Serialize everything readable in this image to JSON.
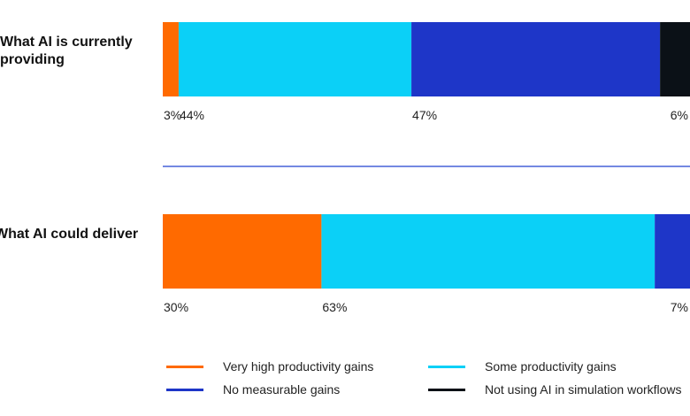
{
  "chart_data": {
    "type": "bar",
    "orientation": "horizontal",
    "stacked": true,
    "rows": [
      {
        "label": "What AI is currently providing",
        "segments": [
          {
            "series": "Very high productivity gains",
            "value": 3,
            "label": "3%"
          },
          {
            "series": "Some productivity gains",
            "value": 44,
            "label": "44%"
          },
          {
            "series": "No measurable gains",
            "value": 47,
            "label": "47%"
          },
          {
            "series": "Not using AI in simulation workflows",
            "value": 6,
            "label": "6%"
          }
        ]
      },
      {
        "label": "What AI could deliver",
        "segments": [
          {
            "series": "Very high productivity gains",
            "value": 30,
            "label": "30%"
          },
          {
            "series": "Some productivity gains",
            "value": 63,
            "label": "63%"
          },
          {
            "series": "No measurable gains",
            "value": 7,
            "label": "7%"
          }
        ]
      }
    ],
    "series": [
      {
        "name": "Very high productivity gains",
        "color": "#ff6a00"
      },
      {
        "name": "Some productivity gains",
        "color": "#0bd0f7"
      },
      {
        "name": "No measurable gains",
        "color": "#1e36c8"
      },
      {
        "name": "Not using AI in simulation workflows",
        "color": "#0b1117"
      }
    ],
    "separator_color": "#2040d0",
    "xlim": [
      0,
      100
    ],
    "legend_position": "bottom"
  }
}
